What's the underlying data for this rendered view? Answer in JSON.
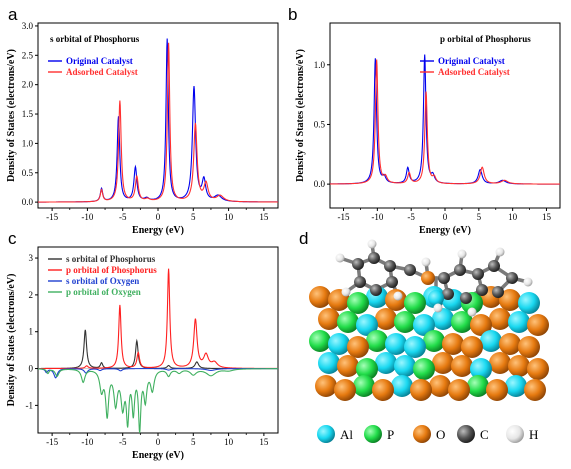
{
  "panels": {
    "a": {
      "letter": "a"
    },
    "b": {
      "letter": "b"
    },
    "c": {
      "letter": "c"
    },
    "d": {
      "letter": "d"
    }
  },
  "chart_data": [
    {
      "id": "a",
      "type": "line",
      "title": "s orbital of Phosphorus",
      "xlabel": "Energy (eV)",
      "ylabel": "Density of States (electrons/eV)",
      "xlim": [
        -17,
        17
      ],
      "ylim": [
        -0.1,
        3.05
      ],
      "xticks": [
        -15,
        -10,
        -5,
        0,
        5,
        10,
        15
      ],
      "yticks": [
        0.0,
        0.5,
        1.0,
        1.5,
        2.0,
        2.5,
        3.0
      ],
      "ytick_labels": [
        "0.0",
        "0.5",
        "1.0",
        "1.5",
        "2.0",
        "2.5",
        "3.0"
      ],
      "legend": "top-left",
      "series": [
        {
          "name": "Original Catalyst",
          "color": "#0000ee",
          "peaks": [
            [
              -8.0,
              0.22,
              0.2
            ],
            [
              -5.6,
              1.45,
              0.22
            ],
            [
              -3.2,
              0.58,
              0.25
            ],
            [
              -1.6,
              0.05,
              0.4
            ],
            [
              1.3,
              2.77,
              0.2
            ],
            [
              5.1,
              1.95,
              0.27
            ],
            [
              6.5,
              0.35,
              0.3
            ],
            [
              8.5,
              0.1,
              0.6
            ]
          ]
        },
        {
          "name": "Adsorbed Catalyst",
          "color": "#ff3030",
          "peaks": [
            [
              -8.0,
              0.2,
              0.2
            ],
            [
              -5.4,
              1.72,
              0.22
            ],
            [
              -3.0,
              0.42,
              0.25
            ],
            [
              -1.5,
              0.04,
              0.4
            ],
            [
              1.5,
              2.7,
              0.2
            ],
            [
              5.3,
              1.32,
              0.28
            ],
            [
              6.8,
              0.3,
              0.35
            ],
            [
              8.8,
              0.1,
              0.6
            ]
          ]
        }
      ]
    },
    {
      "id": "b",
      "type": "line",
      "title": "p orbital of Phosphorus",
      "xlabel": "Energy (eV)",
      "ylabel": "Density of States (electrons/eV)",
      "xlim": [
        -17,
        17
      ],
      "ylim": [
        -0.2,
        1.35
      ],
      "xticks": [
        -15,
        -10,
        -5,
        0,
        5,
        10,
        15
      ],
      "yticks": [
        0.0,
        0.5,
        1.0
      ],
      "ytick_labels": [
        "0.0",
        "0.5",
        "1.0"
      ],
      "legend": "top-left",
      "series": [
        {
          "name": "Original Catalyst",
          "color": "#0000ee",
          "peaks": [
            [
              -10.3,
              1.05,
              0.22
            ],
            [
              -9.0,
              0.05,
              0.3
            ],
            [
              -5.5,
              0.13,
              0.25
            ],
            [
              -3.0,
              1.08,
              0.22
            ],
            [
              -1.8,
              0.06,
              0.3
            ],
            [
              5.2,
              0.12,
              0.35
            ],
            [
              8.5,
              0.03,
              0.6
            ]
          ]
        },
        {
          "name": "Adsorbed Catalyst",
          "color": "#ff3030",
          "peaks": [
            [
              -10.1,
              1.04,
              0.22
            ],
            [
              -8.8,
              0.05,
              0.3
            ],
            [
              -5.3,
              0.09,
              0.25
            ],
            [
              -2.8,
              0.77,
              0.22
            ],
            [
              -1.6,
              0.05,
              0.3
            ],
            [
              5.5,
              0.14,
              0.35
            ],
            [
              8.8,
              0.03,
              0.6
            ]
          ]
        }
      ]
    },
    {
      "id": "c",
      "type": "line",
      "xlabel": "Energy (eV)",
      "ylabel": "Density of States (electrons/eV)",
      "xlim": [
        -17,
        17
      ],
      "ylim": [
        -1.75,
        3.3
      ],
      "xticks": [
        -15,
        -10,
        -5,
        0,
        5,
        10,
        15
      ],
      "yticks": [
        -1,
        0,
        1,
        2,
        3
      ],
      "ytick_labels": [
        "-1",
        "0",
        "1",
        "2",
        "3"
      ],
      "legend": "top-left",
      "series": [
        {
          "name": "s orbital of Phosphorus",
          "color": "#333333",
          "peaks": [
            [
              -10.3,
              1.05,
              0.22
            ],
            [
              -8.0,
              0.15,
              0.2
            ],
            [
              -3.0,
              0.75,
              0.22
            ],
            [
              1.5,
              0.08,
              0.25
            ],
            [
              5.5,
              0.18,
              0.3
            ]
          ]
        },
        {
          "name": "p orbital of Phosphorus",
          "color": "#ff2020",
          "peaks": [
            [
              -10.1,
              0.07,
              0.25
            ],
            [
              -5.4,
              1.72,
              0.2
            ],
            [
              -2.8,
              0.42,
              0.22
            ],
            [
              1.5,
              2.7,
              0.2
            ],
            [
              5.3,
              1.32,
              0.28
            ],
            [
              6.8,
              0.35,
              0.4
            ],
            [
              8.0,
              0.15,
              0.5
            ]
          ]
        },
        {
          "name": "s orbital of Oxygen",
          "color": "#2040d0",
          "peaks": [
            [
              -15.8,
              -0.1,
              0.2
            ],
            [
              -14.5,
              -0.25,
              0.3
            ],
            [
              -10.2,
              -0.12,
              0.3
            ],
            [
              -8.2,
              -0.05,
              0.3
            ],
            [
              -5.3,
              -0.06,
              0.3
            ],
            [
              1.5,
              -0.04,
              0.4
            ],
            [
              7.5,
              -0.05,
              0.8
            ]
          ]
        },
        {
          "name": "p orbital of Oxygen",
          "color": "#40b060",
          "peaks": [
            [
              -15.6,
              -0.12,
              0.2
            ],
            [
              -14.3,
              -0.2,
              0.3
            ],
            [
              -10.6,
              -0.35,
              0.3
            ],
            [
              -8.0,
              -0.55,
              0.3
            ],
            [
              -7.2,
              -1.2,
              0.25
            ],
            [
              -6.0,
              -0.9,
              0.3
            ],
            [
              -5.0,
              -0.95,
              0.3
            ],
            [
              -4.3,
              -1.3,
              0.22
            ],
            [
              -3.5,
              -1.1,
              0.22
            ],
            [
              -2.6,
              -1.55,
              0.2
            ],
            [
              -1.8,
              -0.8,
              0.25
            ],
            [
              -0.8,
              -0.55,
              0.3
            ],
            [
              1.5,
              -0.18,
              0.3
            ],
            [
              3.0,
              -0.1,
              0.4
            ],
            [
              5.0,
              -0.15,
              0.5
            ],
            [
              7.5,
              -0.18,
              0.8
            ],
            [
              10.0,
              -0.05,
              0.8
            ]
          ]
        }
      ]
    }
  ],
  "molecule_legend": [
    {
      "symbol": "Al",
      "color": "#19d8f0"
    },
    {
      "symbol": "P",
      "color": "#22dd4a"
    },
    {
      "symbol": "O",
      "color": "#e67a10"
    },
    {
      "symbol": "C",
      "color": "#555555"
    },
    {
      "symbol": "H",
      "color": "#f2f2f2"
    }
  ]
}
